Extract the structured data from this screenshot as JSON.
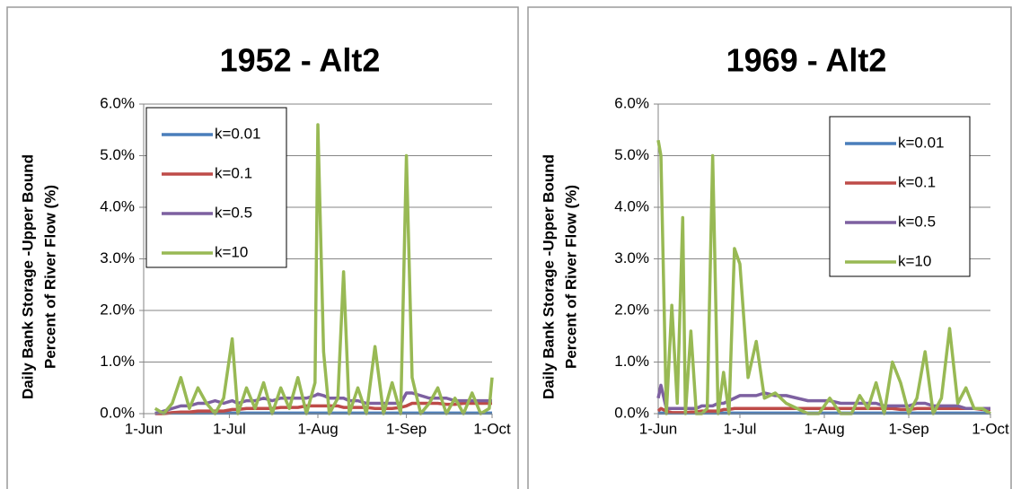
{
  "chart_data": [
    {
      "type": "line",
      "title": "1952 - Alt2",
      "y_label": [
        "Daily Bank Storage -Upper Bound",
        "Percent of River Flow (%)"
      ],
      "x": [
        "5-Jun",
        "8-Jun",
        "11-Jun",
        "14-Jun",
        "17-Jun",
        "20-Jun",
        "23-Jun",
        "26-Jun",
        "29-Jun",
        "2-Jul",
        "4-Jul",
        "7-Jul",
        "10-Jul",
        "13-Jul",
        "16-Jul",
        "19-Jul",
        "22-Jul",
        "25-Jul",
        "28-Jul",
        "31-Jul",
        "1-Aug",
        "3-Aug",
        "5-Aug",
        "8-Aug",
        "10-Aug",
        "12-Aug",
        "15-Aug",
        "18-Aug",
        "21-Aug",
        "24-Aug",
        "27-Aug",
        "30-Aug",
        "1-Sep",
        "3-Sep",
        "6-Sep",
        "9-Sep",
        "12-Sep",
        "15-Sep",
        "18-Sep",
        "21-Sep",
        "24-Sep",
        "27-Sep",
        "30-Sep",
        "1-Oct"
      ],
      "series": [
        {
          "name": "k=0.01",
          "color": "#4a7ebb",
          "values": [
            0.01,
            0.01,
            0.01,
            0.01,
            0.01,
            0.01,
            0.01,
            0.01,
            0.01,
            0.01,
            0.01,
            0.01,
            0.01,
            0.01,
            0.01,
            0.01,
            0.01,
            0.01,
            0.01,
            0.01,
            0.01,
            0.01,
            0.01,
            0.01,
            0.01,
            0.01,
            0.01,
            0.01,
            0.01,
            0.01,
            0.01,
            0.01,
            0.01,
            0.01,
            0.01,
            0.01,
            0.01,
            0.01,
            0.01,
            0.01,
            0.01,
            0.01,
            0.01,
            0.01
          ]
        },
        {
          "name": "k=0.1",
          "color": "#be4b48",
          "values": [
            0,
            0,
            0.02,
            0.03,
            0.03,
            0.05,
            0.05,
            0.05,
            0.05,
            0.08,
            0.08,
            0.1,
            0.1,
            0.1,
            0.1,
            0.12,
            0.12,
            0.12,
            0.15,
            0.15,
            0.15,
            0.15,
            0.15,
            0.15,
            0.12,
            0.12,
            0.12,
            0.12,
            0.1,
            0.1,
            0.1,
            0.12,
            0.15,
            0.2,
            0.2,
            0.2,
            0.2,
            0.18,
            0.18,
            0.2,
            0.2,
            0.2,
            0.2,
            0.2
          ]
        },
        {
          "name": "k=0.5",
          "color": "#7d60a0",
          "values": [
            0,
            0.05,
            0.1,
            0.15,
            0.15,
            0.2,
            0.2,
            0.25,
            0.2,
            0.25,
            0.2,
            0.25,
            0.25,
            0.3,
            0.25,
            0.3,
            0.3,
            0.3,
            0.3,
            0.35,
            0.38,
            0.35,
            0.3,
            0.3,
            0.3,
            0.25,
            0.25,
            0.2,
            0.2,
            0.2,
            0.2,
            0.2,
            0.4,
            0.4,
            0.35,
            0.3,
            0.3,
            0.3,
            0.25,
            0.25,
            0.25,
            0.25,
            0.25,
            0.25
          ]
        },
        {
          "name": "k=10",
          "color": "#98b954",
          "values": [
            0.1,
            0,
            0.2,
            0.7,
            0.1,
            0.5,
            0.2,
            0,
            0.3,
            1.45,
            0,
            0.5,
            0.1,
            0.6,
            0,
            0.5,
            0.1,
            0.7,
            0,
            0.6,
            5.6,
            1.2,
            0,
            0.3,
            2.75,
            0,
            0.5,
            0,
            1.3,
            0,
            0.6,
            0,
            5.0,
            0.7,
            0,
            0.2,
            0.5,
            0,
            0.3,
            0,
            0.4,
            0,
            0.1,
            0.7
          ]
        }
      ],
      "xlim": [
        "1-Jun",
        "1-Oct"
      ],
      "xticks": [
        "1-Jun",
        "1-Jul",
        "1-Aug",
        "1-Sep",
        "1-Oct"
      ],
      "ylim": [
        0,
        6
      ],
      "yticks": [
        {
          "value": 0,
          "label": "0.0%"
        },
        {
          "value": 1,
          "label": "1.0%"
        },
        {
          "value": 2,
          "label": "2.0%"
        },
        {
          "value": 3,
          "label": "3.0%"
        },
        {
          "value": 4,
          "label": "4.0%"
        },
        {
          "value": 5,
          "label": "5.0%"
        },
        {
          "value": 6,
          "label": "6.0%"
        }
      ],
      "grid": true,
      "legend": "upper left"
    },
    {
      "type": "line",
      "title": "1969 - Alt2",
      "y_label": [
        "Daily Bank Storage -Upper Bound",
        "Percent of River Flow (%)"
      ],
      "x": [
        "1-Jun",
        "2-Jun",
        "4-Jun",
        "6-Jun",
        "8-Jun",
        "10-Jun",
        "11-Jun",
        "13-Jun",
        "15-Jun",
        "17-Jun",
        "19-Jun",
        "21-Jun",
        "23-Jun",
        "25-Jun",
        "27-Jun",
        "29-Jun",
        "1-Jul",
        "4-Jul",
        "7-Jul",
        "10-Jul",
        "14-Jul",
        "18-Jul",
        "22-Jul",
        "26-Jul",
        "30-Jul",
        "3-Aug",
        "7-Aug",
        "11-Aug",
        "14-Aug",
        "17-Aug",
        "20-Aug",
        "23-Aug",
        "26-Aug",
        "29-Aug",
        "1-Sep",
        "4-Sep",
        "7-Sep",
        "10-Sep",
        "13-Sep",
        "16-Sep",
        "19-Sep",
        "22-Sep",
        "25-Sep",
        "28-Sep",
        "1-Oct"
      ],
      "series": [
        {
          "name": "k=0.01",
          "color": "#4a7ebb",
          "values": [
            0.01,
            0.01,
            0.01,
            0.01,
            0.01,
            0.01,
            0.01,
            0.01,
            0.01,
            0.01,
            0.01,
            0.01,
            0.01,
            0.01,
            0.01,
            0.01,
            0.01,
            0.01,
            0.01,
            0.01,
            0.01,
            0.01,
            0.01,
            0.01,
            0.01,
            0.01,
            0.01,
            0.01,
            0.01,
            0.01,
            0.01,
            0.01,
            0.01,
            0.01,
            0.01,
            0.01,
            0.01,
            0.01,
            0.01,
            0.01,
            0.01,
            0.01,
            0.01,
            0.01,
            0.01
          ]
        },
        {
          "name": "k=0.1",
          "color": "#be4b48",
          "values": [
            0.05,
            0.1,
            0.05,
            0.02,
            0.02,
            0.02,
            0.02,
            0.03,
            0.03,
            0.05,
            0.05,
            0.05,
            0.05,
            0.08,
            0.08,
            0.1,
            0.1,
            0.1,
            0.1,
            0.1,
            0.1,
            0.1,
            0.1,
            0.1,
            0.1,
            0.1,
            0.1,
            0.1,
            0.1,
            0.1,
            0.1,
            0.1,
            0.1,
            0.08,
            0.08,
            0.1,
            0.1,
            0.1,
            0.1,
            0.1,
            0.1,
            0.1,
            0.1,
            0.08,
            0.08
          ]
        },
        {
          "name": "k=0.5",
          "color": "#7d60a0",
          "values": [
            0.3,
            0.55,
            0.1,
            0.1,
            0.1,
            0.1,
            0.1,
            0.1,
            0.1,
            0.15,
            0.15,
            0.15,
            0.2,
            0.2,
            0.25,
            0.3,
            0.35,
            0.35,
            0.35,
            0.4,
            0.35,
            0.35,
            0.3,
            0.25,
            0.25,
            0.25,
            0.2,
            0.2,
            0.2,
            0.2,
            0.2,
            0.15,
            0.15,
            0.15,
            0.15,
            0.2,
            0.2,
            0.15,
            0.15,
            0.15,
            0.15,
            0.1,
            0.1,
            0.1,
            0.1
          ]
        },
        {
          "name": "k=10",
          "color": "#98b954",
          "values": [
            5.3,
            5.0,
            0,
            2.1,
            0.2,
            3.8,
            0,
            1.6,
            0,
            0,
            0.1,
            5.0,
            0,
            0.8,
            0,
            3.2,
            2.9,
            0.7,
            1.4,
            0.3,
            0.4,
            0.2,
            0.1,
            0,
            0,
            0.3,
            0,
            0,
            0.35,
            0.1,
            0.6,
            0,
            1.0,
            0.6,
            0,
            0.3,
            1.2,
            0,
            0.3,
            1.65,
            0.2,
            0.5,
            0.1,
            0.1,
            0
          ]
        }
      ],
      "xlim": [
        "1-Jun",
        "1-Oct"
      ],
      "xticks": [
        "1-Jun",
        "1-Jul",
        "1-Aug",
        "1-Sep",
        "1-Oct"
      ],
      "ylim": [
        0,
        6
      ],
      "yticks": [
        {
          "value": 0,
          "label": "0.0%"
        },
        {
          "value": 1,
          "label": "1.0%"
        },
        {
          "value": 2,
          "label": "2.0%"
        },
        {
          "value": 3,
          "label": "3.0%"
        },
        {
          "value": 4,
          "label": "4.0%"
        },
        {
          "value": 5,
          "label": "5.0%"
        },
        {
          "value": 6,
          "label": "6.0%"
        }
      ],
      "grid": true,
      "legend": "upper right"
    }
  ]
}
